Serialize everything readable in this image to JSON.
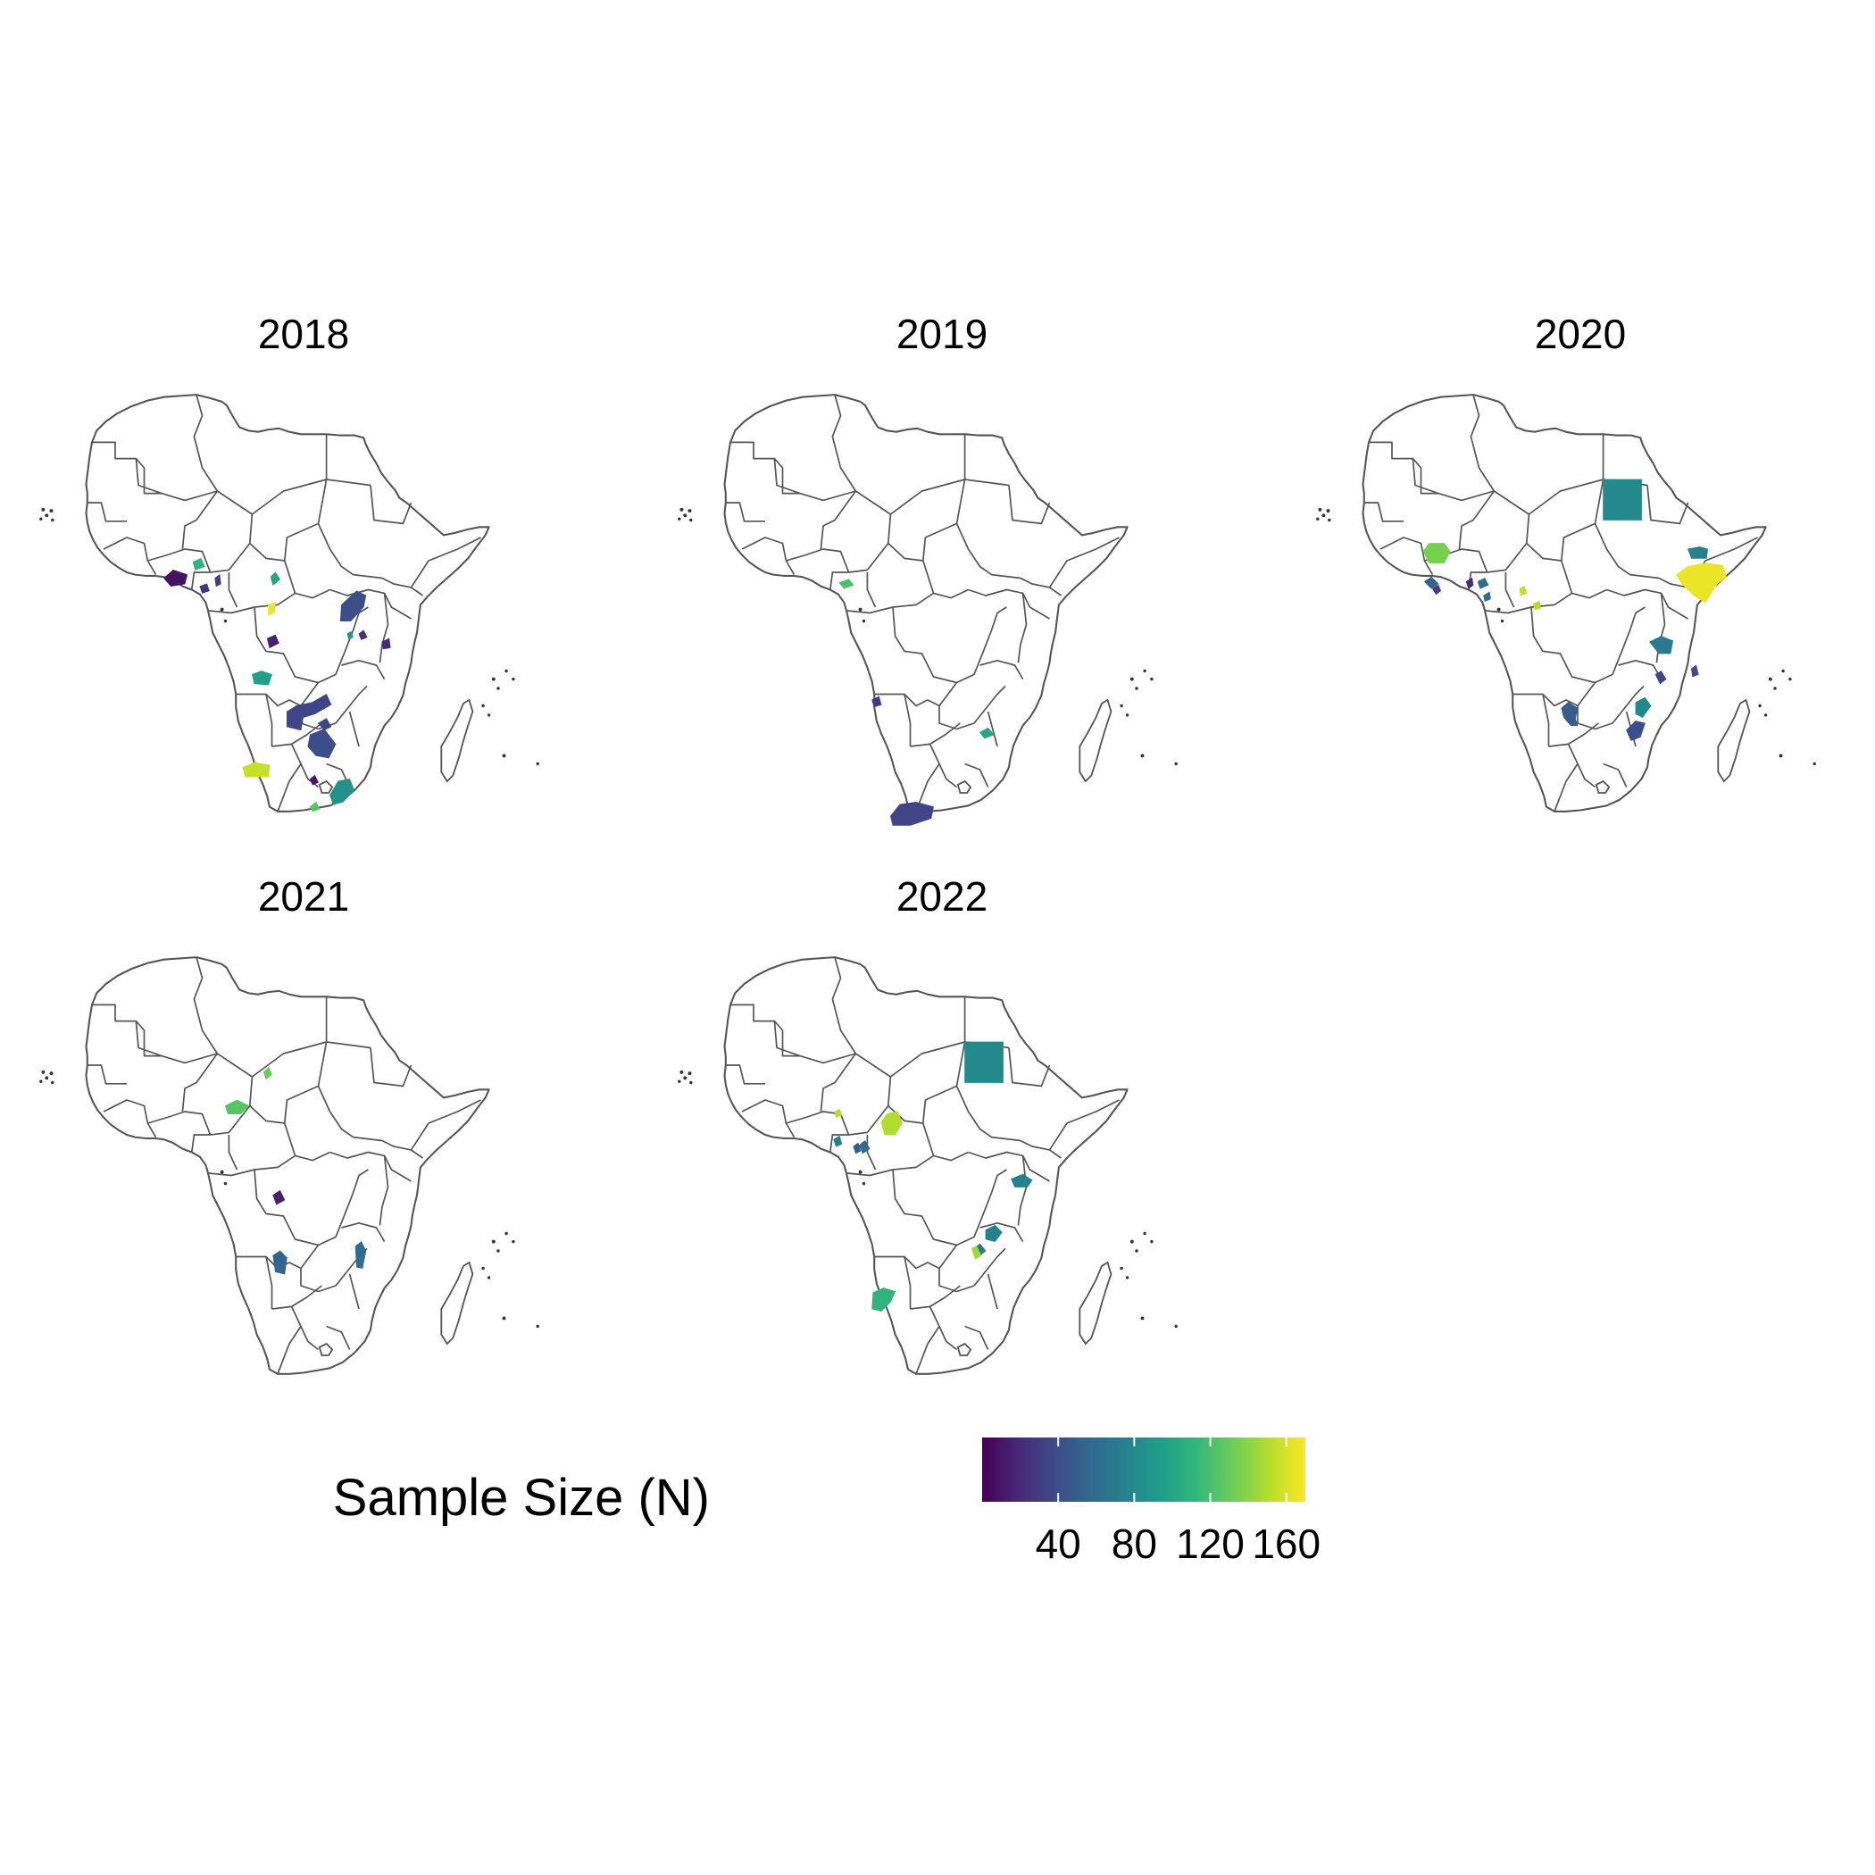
{
  "chart_data": {
    "type": "choropleth-map",
    "facet_variable": "year",
    "panels": [
      {
        "title": "2018",
        "regions": [
          {
            "value": 8
          },
          {
            "value": 110
          },
          {
            "value": 25
          },
          {
            "value": 30
          },
          {
            "value": 100
          },
          {
            "value": 165
          },
          {
            "value": 15
          },
          {
            "value": 40
          },
          {
            "value": 25
          },
          {
            "value": 90
          },
          {
            "value": 20
          },
          {
            "value": 95
          },
          {
            "value": 35
          },
          {
            "value": 40
          },
          {
            "value": 35
          },
          {
            "value": 155
          },
          {
            "value": 10
          },
          {
            "value": 85
          },
          {
            "value": 125
          }
        ]
      },
      {
        "title": "2019",
        "regions": [
          {
            "value": 120
          },
          {
            "value": 30
          },
          {
            "value": 100
          },
          {
            "value": 35
          }
        ]
      },
      {
        "title": "2020",
        "regions": [
          {
            "value": 80
          },
          {
            "value": 135
          },
          {
            "value": 55
          },
          {
            "value": 30
          },
          {
            "value": 60
          },
          {
            "value": 20
          },
          {
            "value": 60
          },
          {
            "value": 155
          },
          {
            "value": 165
          },
          {
            "value": 75
          },
          {
            "value": 150
          },
          {
            "value": 70
          },
          {
            "value": 40
          },
          {
            "value": 50
          },
          {
            "value": 80
          },
          {
            "value": 40
          },
          {
            "value": 35
          }
        ]
      },
      {
        "title": "2021",
        "regions": [
          {
            "value": 125
          },
          {
            "value": 130
          },
          {
            "value": 15
          },
          {
            "value": 55
          },
          {
            "value": 60
          }
        ]
      },
      {
        "title": "2022",
        "regions": [
          {
            "value": 80
          },
          {
            "value": 150
          },
          {
            "value": 60
          },
          {
            "value": 50
          },
          {
            "value": 75
          },
          {
            "value": 150
          },
          {
            "value": 75
          },
          {
            "value": 75
          },
          {
            "value": 70
          },
          {
            "value": 145
          },
          {
            "value": 110
          }
        ]
      }
    ],
    "legend": {
      "title": "Sample Size (N)",
      "tick_values": [
        40,
        80,
        120,
        160
      ],
      "tick_labels": [
        "40",
        "80",
        "120",
        "160"
      ],
      "range": [
        0,
        170
      ],
      "colorscale": "viridis",
      "position": "bottom"
    },
    "viridis_stops": [
      "#440154",
      "#482878",
      "#3e4a89",
      "#31688e",
      "#26828e",
      "#1f9e89",
      "#35b779",
      "#6ece58",
      "#b5de2b",
      "#fde725"
    ]
  }
}
